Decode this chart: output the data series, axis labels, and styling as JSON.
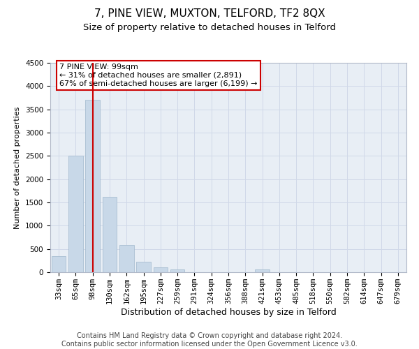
{
  "title": "7, PINE VIEW, MUXTON, TELFORD, TF2 8QX",
  "subtitle": "Size of property relative to detached houses in Telford",
  "xlabel": "Distribution of detached houses by size in Telford",
  "ylabel": "Number of detached properties",
  "categories": [
    "33sqm",
    "65sqm",
    "98sqm",
    "130sqm",
    "162sqm",
    "195sqm",
    "227sqm",
    "259sqm",
    "291sqm",
    "324sqm",
    "356sqm",
    "388sqm",
    "421sqm",
    "453sqm",
    "485sqm",
    "518sqm",
    "550sqm",
    "582sqm",
    "614sqm",
    "647sqm",
    "679sqm"
  ],
  "values": [
    350,
    2500,
    3700,
    1620,
    580,
    230,
    100,
    60,
    0,
    0,
    0,
    0,
    60,
    0,
    0,
    0,
    0,
    0,
    0,
    0,
    0
  ],
  "bar_color": "#c8d8e8",
  "bar_edge_color": "#a0b8cc",
  "highlight_bar_index": 2,
  "highlight_line_color": "#cc0000",
  "ylim": [
    0,
    4500
  ],
  "yticks": [
    0,
    500,
    1000,
    1500,
    2000,
    2500,
    3000,
    3500,
    4000,
    4500
  ],
  "annotation_text": "7 PINE VIEW: 99sqm\n← 31% of detached houses are smaller (2,891)\n67% of semi-detached houses are larger (6,199) →",
  "annotation_box_color": "#ffffff",
  "annotation_border_color": "#cc0000",
  "footer_line1": "Contains HM Land Registry data © Crown copyright and database right 2024.",
  "footer_line2": "Contains public sector information licensed under the Open Government Licence v3.0.",
  "background_color": "#ffffff",
  "grid_color": "#d0d8e8",
  "title_fontsize": 11,
  "subtitle_fontsize": 9.5,
  "xlabel_fontsize": 9,
  "ylabel_fontsize": 8,
  "tick_fontsize": 7.5,
  "footer_fontsize": 7
}
